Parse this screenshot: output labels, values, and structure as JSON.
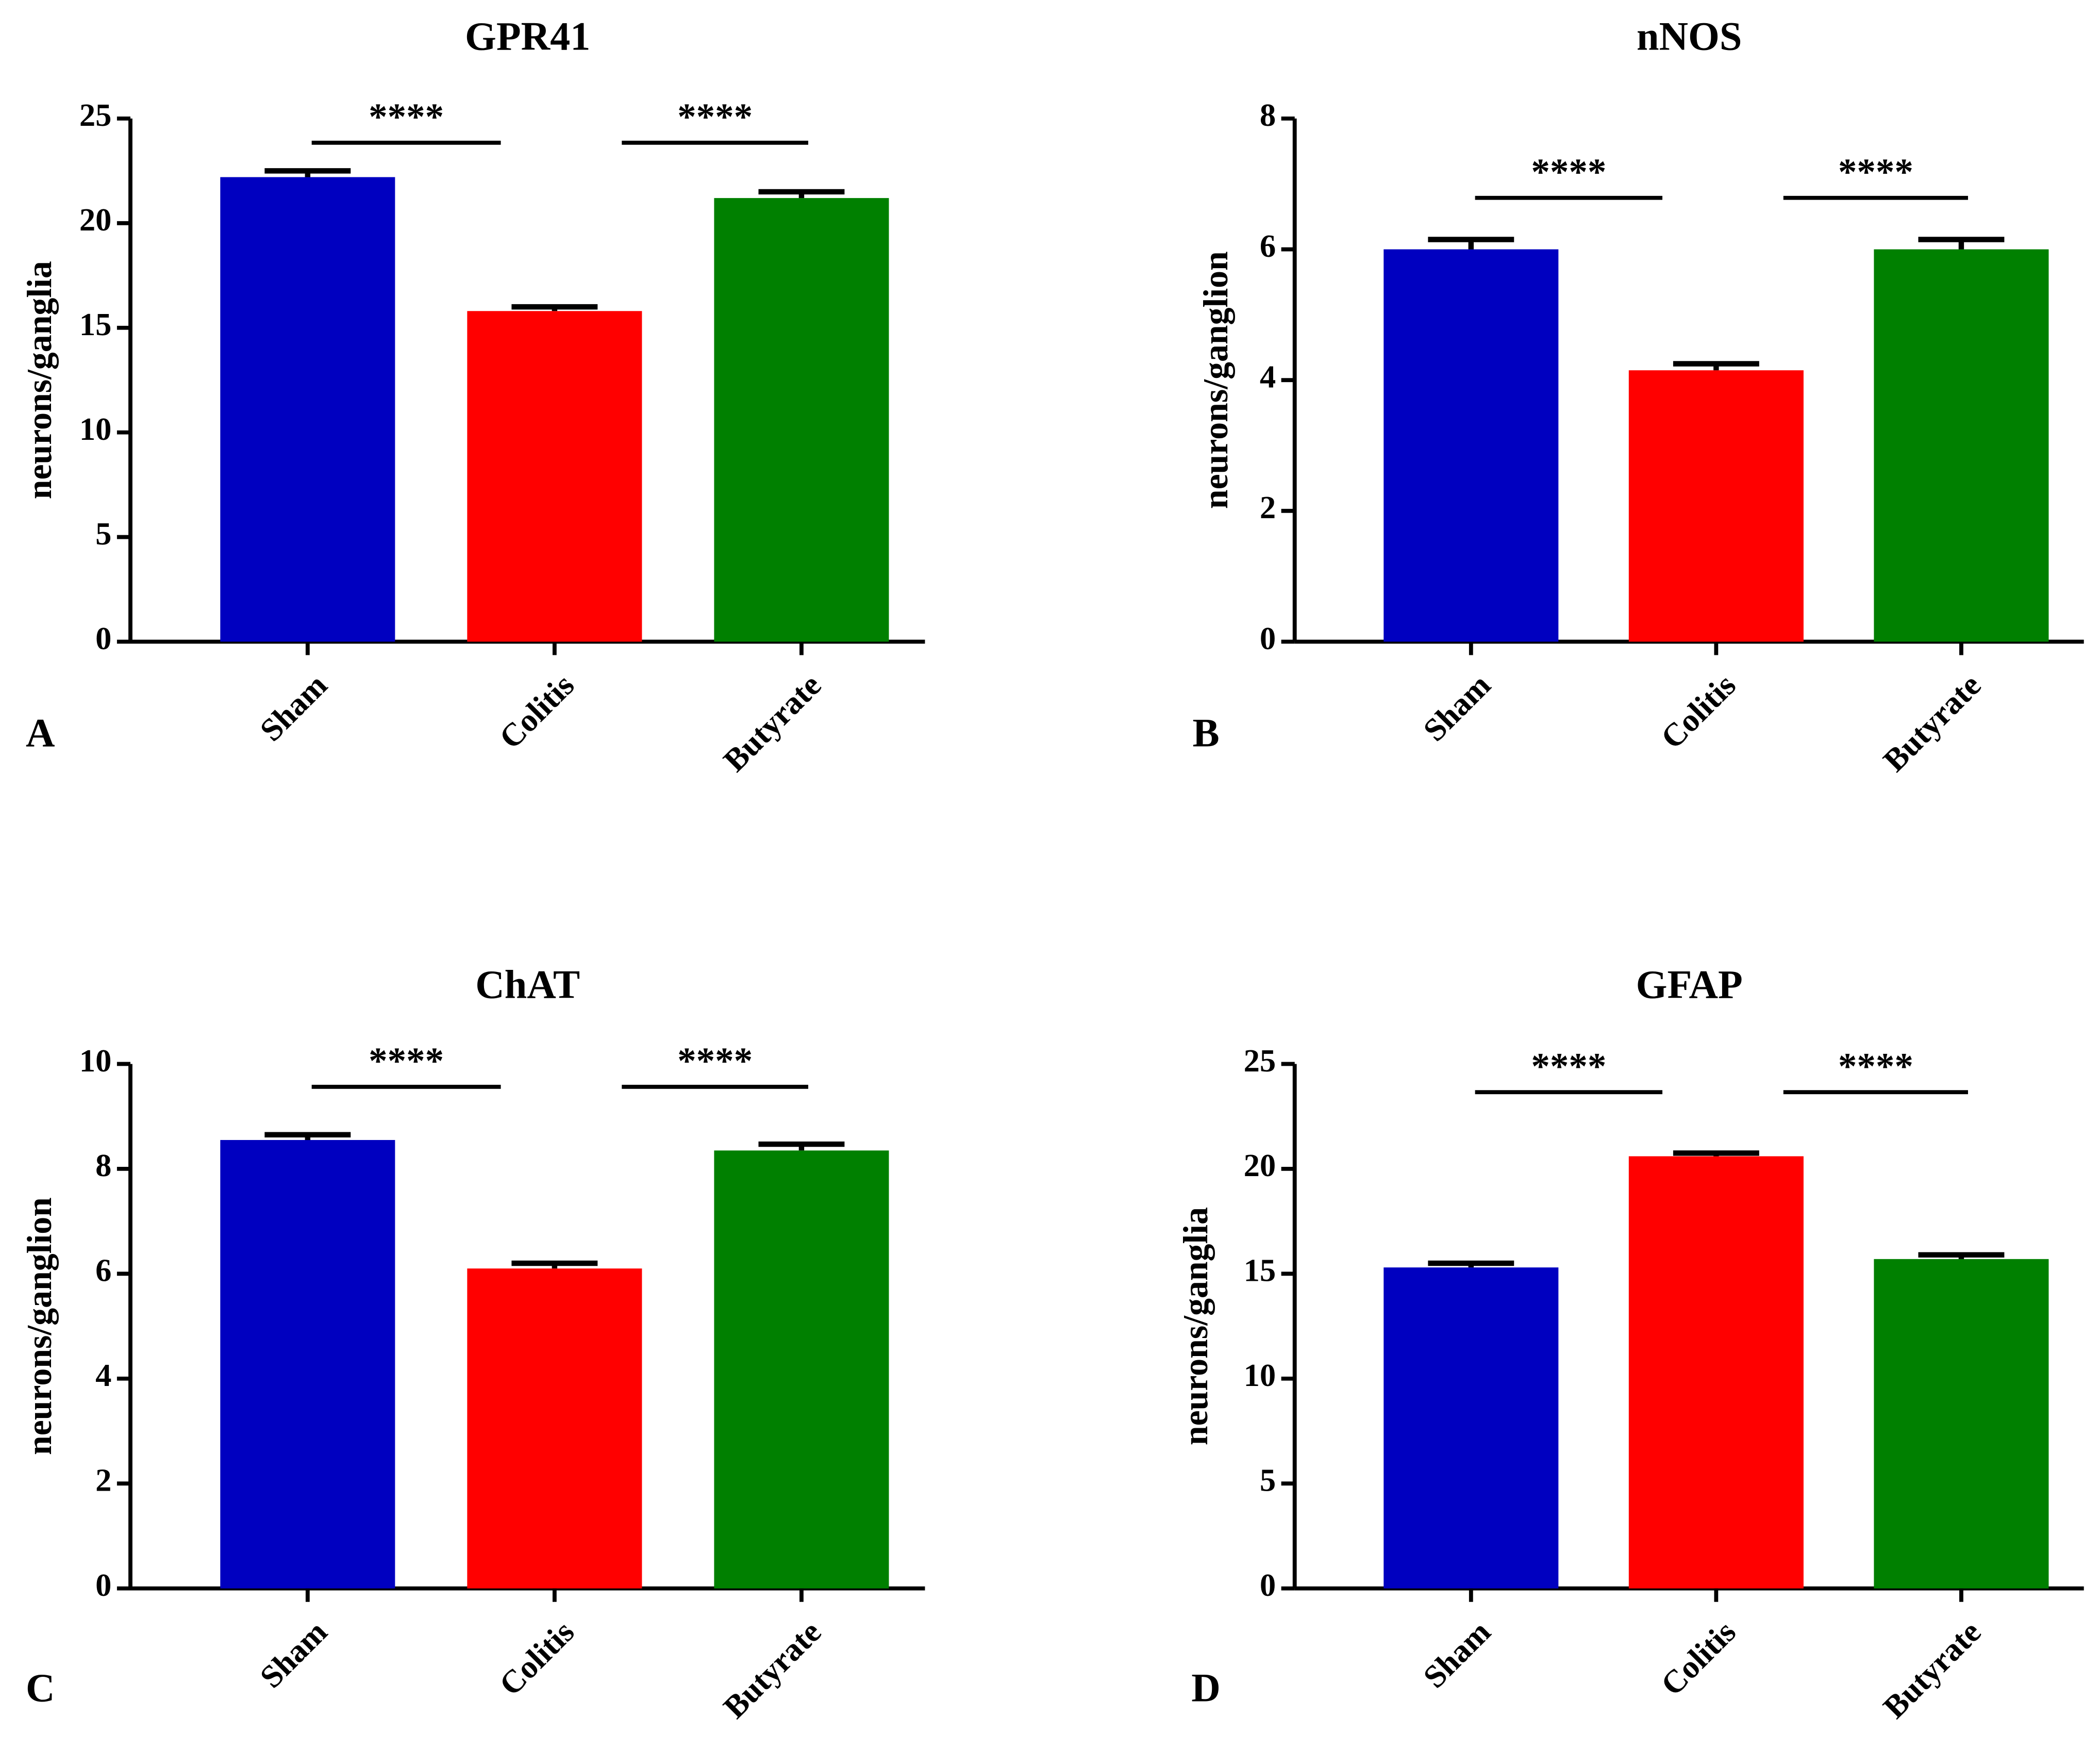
{
  "chart_data": [
    {
      "type": "bar",
      "title": "GPR41",
      "ylabel": "neurons/ganglia",
      "panel_label": "A",
      "categories": [
        "Sham",
        "Colitis",
        "Butyrate"
      ],
      "values": [
        22.2,
        15.8,
        21.2
      ],
      "errors": [
        0.3,
        0.2,
        0.3
      ],
      "colors": [
        "#0000c0",
        "#ff0000",
        "#008000"
      ],
      "ylim": [
        0,
        25
      ],
      "yticks": [
        0,
        5,
        10,
        15,
        20,
        25
      ],
      "grid": false,
      "annotations": [
        "****",
        "****"
      ]
    },
    {
      "type": "bar",
      "title": "nNOS",
      "ylabel": "neurons/ganglion",
      "panel_label": "B",
      "categories": [
        "Sham",
        "Colitis",
        "Butyrate"
      ],
      "values": [
        6.0,
        4.15,
        6.0
      ],
      "errors": [
        0.15,
        0.1,
        0.15
      ],
      "colors": [
        "#0000c0",
        "#ff0000",
        "#008000"
      ],
      "ylim": [
        0,
        8
      ],
      "yticks": [
        0,
        2,
        4,
        6,
        8
      ],
      "grid": false,
      "annotations": [
        "****",
        "****"
      ]
    },
    {
      "type": "bar",
      "title": "ChAT",
      "ylabel": "neurons/ganglion",
      "panel_label": "C",
      "categories": [
        "Sham",
        "Colitis",
        "Butyrate"
      ],
      "values": [
        8.55,
        6.1,
        8.35
      ],
      "errors": [
        0.1,
        0.1,
        0.12
      ],
      "colors": [
        "#0000c0",
        "#ff0000",
        "#008000"
      ],
      "ylim": [
        0,
        10
      ],
      "yticks": [
        0,
        2,
        4,
        6,
        8,
        10
      ],
      "grid": false,
      "annotations": [
        "****",
        "****"
      ]
    },
    {
      "type": "bar",
      "title": "GFAP",
      "ylabel": "neurons/ganglia",
      "panel_label": "D",
      "categories": [
        "Sham",
        "Colitis",
        "Butyrate"
      ],
      "values": [
        15.3,
        20.6,
        15.7
      ],
      "errors": [
        0.2,
        0.15,
        0.2
      ],
      "colors": [
        "#0000c0",
        "#ff0000",
        "#008000"
      ],
      "ylim": [
        0,
        25
      ],
      "yticks": [
        0,
        5,
        10,
        15,
        20,
        25
      ],
      "grid": false,
      "annotations": [
        "****",
        "****"
      ]
    }
  ]
}
